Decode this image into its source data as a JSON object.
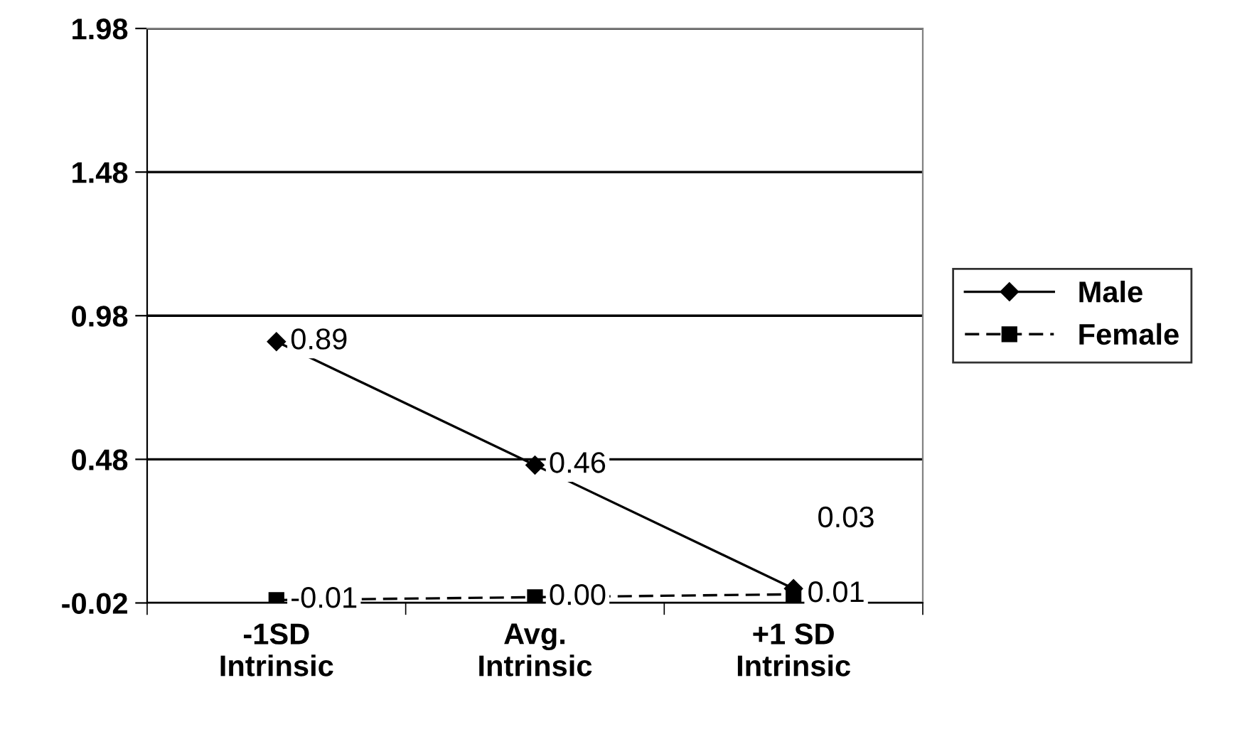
{
  "chart_data": {
    "type": "line",
    "categories": [
      "-1SD\nIntrinsic",
      "Avg.\nIntrinsic",
      "+1 SD\nIntrinsic"
    ],
    "series": [
      {
        "name": "Male",
        "color": "#000000",
        "values": [
          0.89,
          0.46,
          0.03
        ],
        "value_labels": [
          "0.89",
          "0.46",
          "0.03"
        ],
        "marker": "diamond",
        "line_style": "solid"
      },
      {
        "name": "Female",
        "color": "#000000",
        "values": [
          -0.01,
          0.0,
          0.01
        ],
        "value_labels": [
          "-0.01",
          "0.00",
          "0.01"
        ],
        "marker": "square",
        "line_style": "dashed"
      }
    ],
    "ylim": [
      -0.02,
      1.98
    ],
    "yticks": [
      -0.02,
      0.48,
      0.98,
      1.48,
      1.98
    ],
    "grid": "y",
    "legend": "right"
  }
}
